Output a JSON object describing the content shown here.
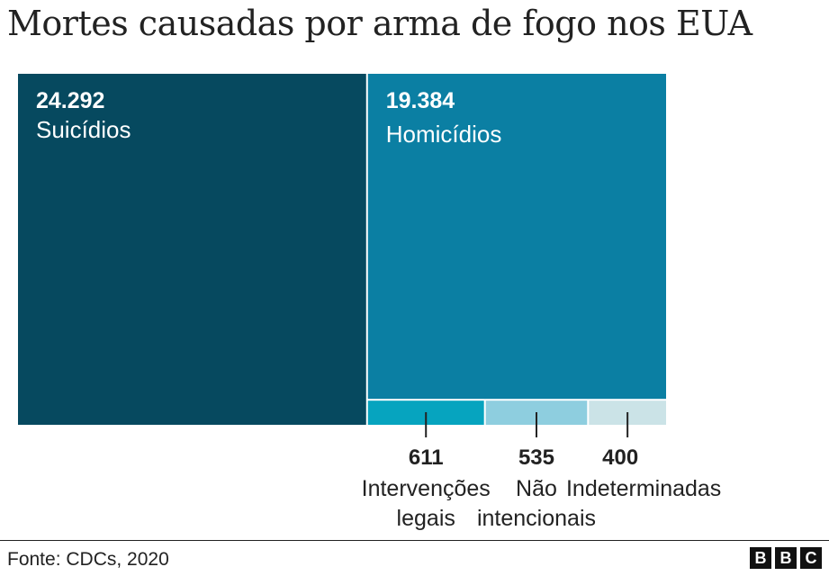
{
  "title": "Mortes causadas por arma de fogo nos EUA",
  "source": "Fonte: CDCs, 2020",
  "logo": [
    "B",
    "B",
    "C"
  ],
  "chart_data": {
    "type": "treemap",
    "items": [
      {
        "label": "Suicídios",
        "value": 24292,
        "value_text": "24.292",
        "color": "#06495f"
      },
      {
        "label": "Homicídios",
        "value": 19384,
        "value_text": "19.384",
        "color": "#0b7fa3"
      },
      {
        "label": "Intervenções legais",
        "value": 611,
        "value_text": "611",
        "color": "#06a4bf"
      },
      {
        "label": "Não intencionais",
        "value": 535,
        "value_text": "535",
        "color": "#8ecedf"
      },
      {
        "label": "Indeterminadas",
        "value": 400,
        "value_text": "400",
        "color": "#cbe3e7"
      }
    ]
  }
}
